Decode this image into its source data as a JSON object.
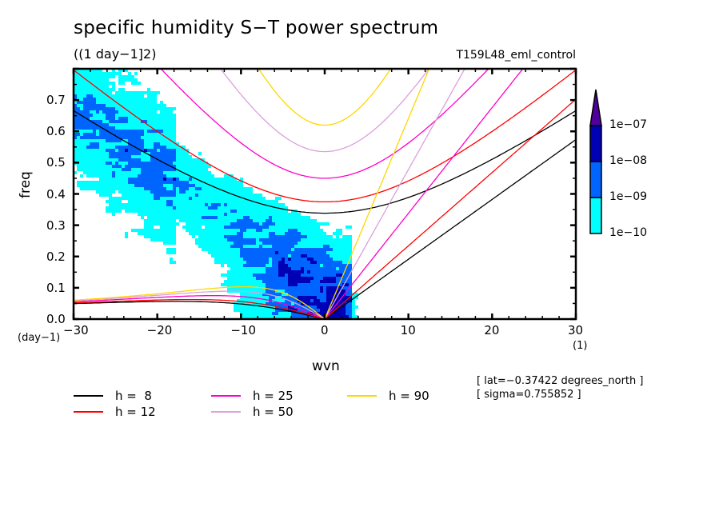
{
  "header": {
    "title": "specific humidity S−T power spectrum",
    "subtitle": "((1 day−1]2)",
    "experiment": "T159L48_eml_control"
  },
  "info": {
    "lat": "[ lat=−0.37422 degrees_north ]",
    "sigma": "[ sigma=0.755852 ]"
  },
  "chart_data": {
    "type": "heatmap",
    "title": "specific humidity S−T power spectrum",
    "xlabel": "wvn",
    "ylabel": "freq",
    "x_unit": "(1)",
    "y_unit": "(day−1)",
    "xlim": [
      -30,
      30
    ],
    "ylim": [
      0,
      0.8
    ],
    "x_ticks": [
      -30,
      -20,
      -10,
      0,
      10,
      20,
      30
    ],
    "x_tick_labels": [
      "−30",
      "−20",
      "−10",
      "0",
      "10",
      "20",
      "30"
    ],
    "y_ticks": [
      0.0,
      0.1,
      0.2,
      0.3,
      0.4,
      0.5,
      0.6,
      0.7
    ],
    "y_tick_labels": [
      "0.0",
      "0.1",
      "0.2",
      "0.3",
      "0.4",
      "0.5",
      "0.6",
      "0.7"
    ],
    "colorbar": {
      "levels": [
        "1e−10",
        "1e−09",
        "1e−08",
        "1e−07"
      ],
      "colors": [
        "#00ffff",
        "#0064ff",
        "#0000b4",
        "#50009b"
      ],
      "extend": "max"
    },
    "dispersion_curves": [
      {
        "label": "h =  8",
        "h": 8,
        "color": "#000000"
      },
      {
        "label": "h = 12",
        "h": 12,
        "color": "#ff0000"
      },
      {
        "label": "h = 25",
        "h": 25,
        "color": "#ff00c8"
      },
      {
        "label": "h = 50",
        "h": 50,
        "color": "#dca0dc"
      },
      {
        "label": "h = 90",
        "h": 90,
        "color": "#ffd700"
      }
    ],
    "legend_placement": "bottom-left"
  }
}
